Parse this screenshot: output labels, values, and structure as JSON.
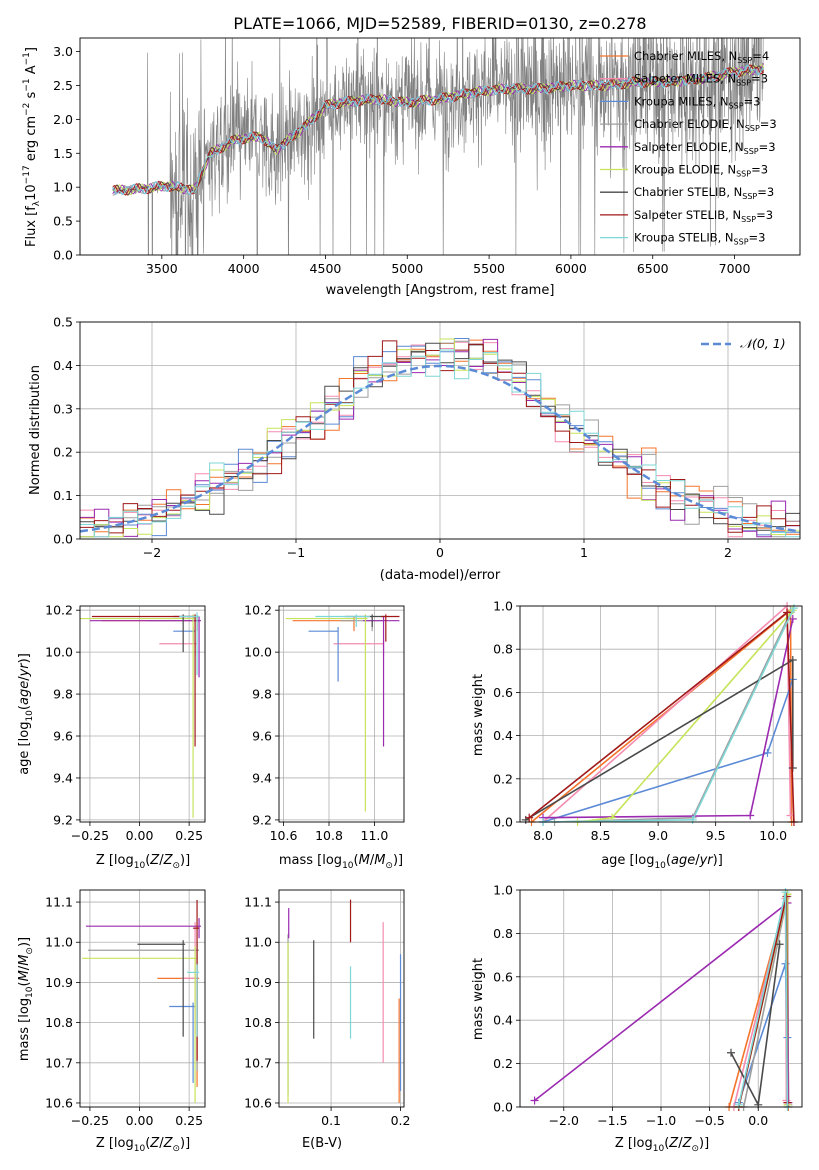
{
  "figure": {
    "title": "PLATE=1066, MJD=52589, FIBERID=0130, z=0.278"
  },
  "colors": {
    "Chabrier MILES": "#f4742c",
    "Salpeter MILES": "#f48cb0",
    "Kroupa MILES": "#5b8ad6",
    "Chabrier ELODIE": "#9e9e9e",
    "Salpeter ELODIE": "#9b2ab1",
    "Kroupa ELODIE": "#c6e45a",
    "Chabrier STELIB": "#4a4a4a",
    "Salpeter STELIB": "#a01818",
    "Kroupa STELIB": "#7fd6d6",
    "data": "#808080",
    "normal": "#5b8ad6"
  },
  "chart_data": [
    {
      "id": "spectrum",
      "type": "line",
      "title": "PLATE=1066, MJD=52589, FIBERID=0130, z=0.278",
      "xlabel": "wavelength [Angstrom, rest frame]",
      "ylabel": "Flux [f_λ 10^-17 erg cm^-2 s^-1 A^-1]",
      "xlim": [
        3000,
        7400
      ],
      "ylim": [
        0,
        3.2
      ],
      "xticks": [
        3500,
        4000,
        4500,
        5000,
        5500,
        6000,
        6500,
        7000
      ],
      "yticks": [
        0.0,
        0.5,
        1.0,
        1.5,
        2.0,
        2.5,
        3.0
      ],
      "legend": "top-right",
      "legend_entries": [
        {
          "name": "Chabrier MILES",
          "nssp": "4"
        },
        {
          "name": "Salpeter MILES",
          "nssp": "3"
        },
        {
          "name": "Kroupa MILES",
          "nssp": "3"
        },
        {
          "name": "Chabrier ELODIE",
          "nssp": "3"
        },
        {
          "name": "Salpeter ELODIE",
          "nssp": "3"
        },
        {
          "name": "Kroupa ELODIE",
          "nssp": "3"
        },
        {
          "name": "Chabrier STELIB",
          "nssp": "3"
        },
        {
          "name": "Salpeter STELIB",
          "nssp": "3"
        },
        {
          "name": "Kroupa STELIB",
          "nssp": "3"
        }
      ],
      "continuum": {
        "x": [
          3200,
          3400,
          3520,
          3600,
          3700,
          3760,
          3800,
          3950,
          4100,
          4200,
          4300,
          4400,
          4500,
          4600,
          4800,
          5000,
          5200,
          5400,
          5600,
          5800,
          6000,
          6200,
          6400,
          6600,
          6800,
          7000,
          7180
        ],
        "y": [
          0.95,
          0.98,
          1.02,
          1.0,
          0.95,
          1.3,
          1.5,
          1.7,
          1.75,
          1.55,
          1.75,
          1.95,
          2.2,
          2.25,
          2.3,
          2.25,
          2.3,
          2.4,
          2.45,
          2.45,
          2.5,
          2.5,
          2.55,
          2.55,
          2.6,
          2.7,
          2.75
        ]
      }
    },
    {
      "id": "residuals",
      "type": "line",
      "xlabel": "(data-model)/error",
      "ylabel": "Normed distribution",
      "xlim": [
        -2.5,
        2.5
      ],
      "ylim": [
        0,
        0.5
      ],
      "xticks": [
        -2,
        -1,
        0,
        1,
        2
      ],
      "yticks": [
        0.0,
        0.1,
        0.2,
        0.3,
        0.4,
        0.5
      ],
      "legend": "top-right",
      "legend_label": "𝒩(0, 1)",
      "grid": true,
      "bin_width": 0.1
    },
    {
      "id": "age-vs-z",
      "type": "scatter",
      "xlabel": "Z [log10(Z/Z⊙)]",
      "ylabel": "age  [log10(age/yr)]",
      "xlim": [
        -0.3,
        0.33
      ],
      "ylim": [
        9.19,
        10.22
      ],
      "xticks": [
        -0.25,
        0.0,
        0.25
      ],
      "yticks": [
        9.2,
        9.4,
        9.6,
        9.8,
        10.0,
        10.2
      ],
      "grid": true,
      "points": [
        {
          "s": "Chabrier MILES",
          "x": 0.29,
          "y": 10.15,
          "xerr": [
            0.48,
            0.01
          ],
          "yerr": [
            0.05,
            0.02
          ]
        },
        {
          "s": "Salpeter MILES",
          "x": 0.28,
          "y": 10.04,
          "xerr": [
            0.18,
            0.01
          ],
          "yerr": [
            0.06,
            0.02
          ]
        },
        {
          "s": "Kroupa MILES",
          "x": 0.27,
          "y": 10.1,
          "xerr": [
            0.1,
            0.01
          ],
          "yerr": [
            0.06,
            0.02
          ]
        },
        {
          "s": "Chabrier ELODIE",
          "x": 0.29,
          "y": 10.15,
          "xerr": [
            0.25,
            0.01
          ],
          "yerr": [
            0.05,
            0.02
          ]
        },
        {
          "s": "Salpeter ELODIE",
          "x": 0.3,
          "y": 10.15,
          "xerr": [
            0.55,
            0.01
          ],
          "yerr": [
            0.27,
            0.02
          ]
        },
        {
          "s": "Kroupa ELODIE",
          "x": 0.27,
          "y": 10.16,
          "xerr": [
            0.57,
            0.01
          ],
          "yerr": [
            0.95,
            0.02
          ]
        },
        {
          "s": "Chabrier STELIB",
          "x": 0.22,
          "y": 10.17,
          "xerr": [
            0.05,
            0.08
          ],
          "yerr": [
            0.17,
            0.01
          ]
        },
        {
          "s": "Salpeter STELIB",
          "x": 0.28,
          "y": 10.17,
          "xerr": [
            0.52,
            0.01
          ],
          "yerr": [
            0.62,
            0.01
          ]
        },
        {
          "s": "Kroupa STELIB",
          "x": 0.29,
          "y": 10.17,
          "xerr": [
            0.09,
            0.01
          ],
          "yerr": [
            0.28,
            0.02
          ]
        }
      ]
    },
    {
      "id": "age-vs-mass",
      "type": "scatter",
      "xlabel": "mass [log10(M/M⊙)]",
      "ylabel": "",
      "xlim": [
        10.58,
        11.13
      ],
      "ylim": [
        9.19,
        10.22
      ],
      "xticks": [
        10.6,
        10.8,
        11.0
      ],
      "yticks": [
        9.2,
        9.4,
        9.6,
        9.8,
        10.0,
        10.2
      ],
      "grid": true,
      "points": [
        {
          "s": "Chabrier MILES",
          "x": 10.91,
          "y": 10.15,
          "xerr": [
            0.27,
            0.0
          ],
          "yerr": [
            0.05,
            0.02
          ]
        },
        {
          "s": "Salpeter MILES",
          "x": 11.04,
          "y": 10.04,
          "xerr": [
            0.22,
            0.0
          ],
          "yerr": [
            0.06,
            0.02
          ]
        },
        {
          "s": "Kroupa MILES",
          "x": 10.84,
          "y": 10.1,
          "xerr": [
            0.13,
            0.0
          ],
          "yerr": [
            0.24,
            0.02
          ]
        },
        {
          "s": "Chabrier ELODIE",
          "x": 10.99,
          "y": 10.15,
          "xerr": [
            0.14,
            0.05
          ],
          "yerr": [
            0.05,
            0.02
          ]
        },
        {
          "s": "Salpeter ELODIE",
          "x": 11.04,
          "y": 10.15,
          "xerr": [
            0.09,
            0.07
          ],
          "yerr": [
            0.6,
            0.02
          ]
        },
        {
          "s": "Kroupa ELODIE",
          "x": 10.96,
          "y": 10.16,
          "xerr": [
            0.35,
            0.01
          ],
          "yerr": [
            0.92,
            0.02
          ]
        },
        {
          "s": "Chabrier STELIB",
          "x": 10.99,
          "y": 10.17,
          "xerr": [
            0.12,
            0.06
          ],
          "yerr": [
            0.05,
            0.01
          ]
        },
        {
          "s": "Salpeter STELIB",
          "x": 11.05,
          "y": 10.17,
          "xerr": [
            0.02,
            0.06
          ],
          "yerr": [
            0.12,
            0.01
          ]
        },
        {
          "s": "Kroupa STELIB",
          "x": 10.92,
          "y": 10.17,
          "xerr": [
            0.18,
            0.06
          ],
          "yerr": [
            0.05,
            0.01
          ]
        }
      ]
    },
    {
      "id": "massweight-vs-age",
      "type": "line",
      "xlabel": "age  [log10(age/yr)]",
      "ylabel": "mass weight",
      "xlim": [
        7.8,
        10.25
      ],
      "ylim": [
        0.0,
        1.0
      ],
      "xticks": [
        8.0,
        8.5,
        9.0,
        9.5,
        10.0
      ],
      "yticks": [
        0.0,
        0.2,
        0.4,
        0.6,
        0.8,
        1.0
      ],
      "grid": true,
      "series": [
        {
          "s": "Chabrier MILES",
          "x": [
            7.9,
            10.15,
            10.16
          ],
          "y": [
            0.0,
            0.98,
            0.0
          ]
        },
        {
          "s": "Salpeter MILES",
          "x": [
            8.0,
            10.12,
            10.15
          ],
          "y": [
            0.0,
            1.0,
            0.03
          ]
        },
        {
          "s": "Kroupa MILES",
          "x": [
            8.0,
            9.95,
            10.17
          ],
          "y": [
            0.0,
            0.32,
            0.66
          ]
        },
        {
          "s": "Chabrier ELODIE",
          "x": [
            8.1,
            9.3,
            10.15
          ],
          "y": [
            0.0,
            0.02,
            0.97
          ]
        },
        {
          "s": "Salpeter ELODIE",
          "x": [
            8.0,
            9.8,
            10.17
          ],
          "y": [
            0.02,
            0.03,
            0.94
          ]
        },
        {
          "s": "Kroupa ELODIE",
          "x": [
            8.3,
            8.6,
            10.17
          ],
          "y": [
            0.0,
            0.02,
            0.98
          ]
        },
        {
          "s": "Chabrier STELIB",
          "x": [
            7.85,
            10.17,
            10.17
          ],
          "y": [
            0.01,
            0.75,
            0.25
          ]
        },
        {
          "s": "Salpeter STELIB",
          "x": [
            7.88,
            10.12,
            10.18
          ],
          "y": [
            0.02,
            0.97,
            0.0
          ]
        },
        {
          "s": "Kroupa STELIB",
          "x": [
            8.0,
            9.3,
            10.18
          ],
          "y": [
            0.0,
            0.01,
            0.99
          ]
        }
      ]
    },
    {
      "id": "mass-vs-z",
      "type": "scatter",
      "xlabel": "Z [log10(Z/Z⊙)]",
      "ylabel": "mass [log10(M/M⊙)]",
      "xlim": [
        -0.3,
        0.33
      ],
      "ylim": [
        10.59,
        11.13
      ],
      "xticks": [
        -0.25,
        0.0,
        0.25
      ],
      "yticks": [
        10.6,
        10.7,
        10.8,
        10.9,
        11.0,
        11.1
      ],
      "grid": true,
      "points": [
        {
          "s": "Chabrier MILES",
          "x": 0.29,
          "y": 10.91,
          "xerr": [
            0.2,
            0.01
          ],
          "yerr": [
            0.27,
            0.01
          ]
        },
        {
          "s": "Salpeter MILES",
          "x": 0.28,
          "y": 10.91,
          "xerr": [
            0.07,
            0.01
          ],
          "yerr": [
            0.14,
            0.14
          ]
        },
        {
          "s": "Kroupa MILES",
          "x": 0.27,
          "y": 10.84,
          "xerr": [
            0.12,
            0.01
          ],
          "yerr": [
            0.19,
            0.01
          ]
        },
        {
          "s": "Chabrier ELODIE",
          "x": 0.29,
          "y": 10.98,
          "xerr": [
            0.55,
            0.01
          ],
          "yerr": [
            0.3,
            0.02
          ]
        },
        {
          "s": "Salpeter ELODIE",
          "x": 0.3,
          "y": 11.04,
          "xerr": [
            0.57,
            0.01
          ],
          "yerr": [
            0.03,
            0.02
          ]
        },
        {
          "s": "Kroupa ELODIE",
          "x": 0.28,
          "y": 10.96,
          "xerr": [
            0.57,
            0.01
          ],
          "yerr": [
            0.36,
            0.03
          ]
        },
        {
          "s": "Chabrier STELIB",
          "x": 0.22,
          "y": 10.995,
          "xerr": [
            0.23,
            0.01
          ],
          "yerr": [
            0.23,
            0.01
          ]
        },
        {
          "s": "Salpeter STELIB",
          "x": 0.29,
          "y": 11.035,
          "xerr": [
            0.02,
            0.01
          ],
          "yerr": [
            0.33,
            0.07
          ]
        },
        {
          "s": "Kroupa STELIB",
          "x": 0.29,
          "y": 10.925,
          "xerr": [
            0.05,
            0.01
          ],
          "yerr": [
            0.16,
            0.02
          ]
        }
      ]
    },
    {
      "id": "mass-vs-ebv",
      "type": "scatter",
      "xlabel": "E(B-V)",
      "ylabel": "",
      "xlim": [
        0.025,
        0.205
      ],
      "ylim": [
        10.59,
        11.13
      ],
      "xticks": [
        0.1,
        0.2
      ],
      "yticks": [
        10.6,
        10.7,
        10.8,
        10.9,
        11.0,
        11.1
      ],
      "grid": true,
      "points": [
        {
          "s": "Chabrier MILES",
          "x": 0.198,
          "y": 10.86,
          "yerr": [
            0.26,
            0.0
          ]
        },
        {
          "s": "Salpeter MILES",
          "x": 0.175,
          "y": 10.96,
          "yerr": [
            0.26,
            0.09
          ]
        },
        {
          "s": "Kroupa MILES",
          "x": 0.2,
          "y": 10.85,
          "yerr": [
            0.22,
            0.12
          ]
        },
        {
          "s": "Chabrier ELODIE",
          "x": 0.038,
          "y": 10.98,
          "yerr": [
            0.36,
            0.04
          ]
        },
        {
          "s": "Salpeter ELODIE",
          "x": 0.039,
          "y": 11.04,
          "yerr": [
            0.03,
            0.045
          ]
        },
        {
          "s": "Kroupa ELODIE",
          "x": 0.038,
          "y": 10.96,
          "yerr": [
            0.36,
            0.04
          ]
        },
        {
          "s": "Chabrier STELIB",
          "x": 0.075,
          "y": 10.99,
          "yerr": [
            0.23,
            0.015
          ]
        },
        {
          "s": "Salpeter STELIB",
          "x": 0.128,
          "y": 11.05,
          "yerr": [
            0.05,
            0.056
          ]
        },
        {
          "s": "Kroupa STELIB",
          "x": 0.128,
          "y": 10.92,
          "yerr": [
            0.16,
            0.02
          ]
        }
      ]
    },
    {
      "id": "massweight-vs-z",
      "type": "line",
      "xlabel": "Z [log10(Z/Z⊙)]",
      "ylabel": "mass weight",
      "xlim": [
        -2.45,
        0.45
      ],
      "ylim": [
        0.0,
        1.0
      ],
      "xticks": [
        -2.0,
        -1.5,
        -1.0,
        -0.5,
        0.0
      ],
      "yticks": [
        0.0,
        0.2,
        0.4,
        0.6,
        0.8,
        1.0
      ],
      "grid": true,
      "series": [
        {
          "s": "Chabrier MILES",
          "x": [
            -0.3,
            0.3,
            0.31
          ],
          "y": [
            0.0,
            0.98,
            0.0
          ]
        },
        {
          "s": "Salpeter MILES",
          "x": [
            -0.25,
            0.28,
            0.29
          ],
          "y": [
            0.0,
            0.96,
            0.03
          ]
        },
        {
          "s": "Kroupa MILES",
          "x": [
            -0.2,
            0.28,
            0.3
          ],
          "y": [
            0.02,
            0.66,
            0.32
          ]
        },
        {
          "s": "Chabrier ELODIE",
          "x": [
            -0.15,
            0.3,
            0.31
          ],
          "y": [
            0.0,
            0.97,
            0.01
          ]
        },
        {
          "s": "Salpeter ELODIE",
          "x": [
            -2.3,
            0.3,
            0.31
          ],
          "y": [
            0.03,
            0.94,
            0.02
          ]
        },
        {
          "s": "Kroupa ELODIE",
          "x": [
            -0.2,
            0.3,
            0.3
          ],
          "y": [
            0.0,
            0.98,
            0.01
          ]
        },
        {
          "s": "Chabrier STELIB",
          "x": [
            -0.28,
            0.0,
            0.22
          ],
          "y": [
            0.25,
            0.01,
            0.75
          ]
        },
        {
          "s": "Salpeter STELIB",
          "x": [
            -0.2,
            0.29,
            0.3
          ],
          "y": [
            0.0,
            0.97,
            0.02
          ]
        },
        {
          "s": "Kroupa STELIB",
          "x": [
            -0.2,
            0.28,
            0.3
          ],
          "y": [
            0.01,
            0.99,
            0.0
          ]
        }
      ]
    }
  ]
}
